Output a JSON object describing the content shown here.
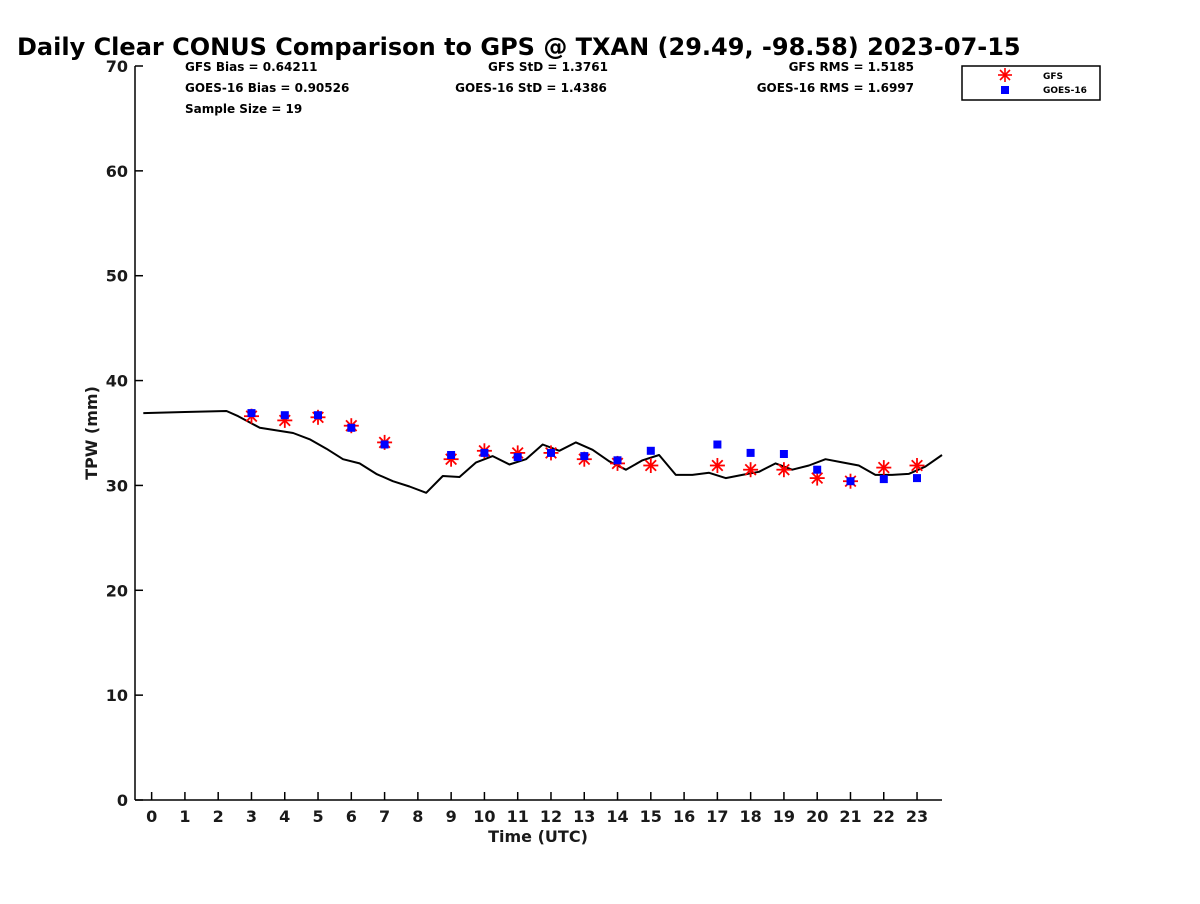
{
  "chart_data": {
    "type": "scatter",
    "title": "Daily Clear CONUS Comparison to GPS @ TXAN (29.49, -98.58) 2023-07-15",
    "xlabel": "Time (UTC)",
    "ylabel": "TPW (mm)",
    "xlim": [
      -0.5,
      23.75
    ],
    "ylim": [
      0,
      70
    ],
    "x_ticks": [
      0,
      1,
      2,
      3,
      4,
      5,
      6,
      7,
      8,
      9,
      10,
      11,
      12,
      13,
      14,
      15,
      16,
      17,
      18,
      19,
      20,
      21,
      22,
      23
    ],
    "y_ticks": [
      0,
      10,
      20,
      30,
      40,
      50,
      60,
      70
    ],
    "grid": false,
    "legend_position": "top-right, outside plot",
    "stats": [
      "GFS Bias = 0.64211",
      "GOES-16 Bias = 0.90526",
      "Sample Size = 19",
      "GFS StD = 1.3761",
      "GOES-16 StD = 1.4386",
      "GFS RMS = 1.5185",
      "GOES-16 RMS = 1.6997"
    ],
    "gps_line": {
      "color": "#000000",
      "points": [
        [
          -0.25,
          36.9
        ],
        [
          1.0,
          37.0
        ],
        [
          2.25,
          37.1
        ],
        [
          2.6,
          36.6
        ],
        [
          3.25,
          35.5
        ],
        [
          4.25,
          35.0
        ],
        [
          4.75,
          34.4
        ],
        [
          5.25,
          33.5
        ],
        [
          5.75,
          32.5
        ],
        [
          6.25,
          32.1
        ],
        [
          6.75,
          31.1
        ],
        [
          7.25,
          30.4
        ],
        [
          7.75,
          29.9
        ],
        [
          8.25,
          29.3
        ],
        [
          8.75,
          30.9
        ],
        [
          9.25,
          30.8
        ],
        [
          9.75,
          32.2
        ],
        [
          10.25,
          32.8
        ],
        [
          10.75,
          32.0
        ],
        [
          11.25,
          32.5
        ],
        [
          11.75,
          33.9
        ],
        [
          12.25,
          33.3
        ],
        [
          12.75,
          34.1
        ],
        [
          13.25,
          33.4
        ],
        [
          13.75,
          32.3
        ],
        [
          14.25,
          31.5
        ],
        [
          14.75,
          32.4
        ],
        [
          15.25,
          32.9
        ],
        [
          15.75,
          31.0
        ],
        [
          16.25,
          31.0
        ],
        [
          16.75,
          31.2
        ],
        [
          17.25,
          30.7
        ],
        [
          17.75,
          31.0
        ],
        [
          18.25,
          31.3
        ],
        [
          18.75,
          32.1
        ],
        [
          19.25,
          31.5
        ],
        [
          19.75,
          31.9
        ],
        [
          20.25,
          32.5
        ],
        [
          20.75,
          32.2
        ],
        [
          21.25,
          31.9
        ],
        [
          21.75,
          31.0
        ],
        [
          22.25,
          31.0
        ],
        [
          22.75,
          31.1
        ],
        [
          23.25,
          31.8
        ],
        [
          23.75,
          32.9
        ]
      ]
    },
    "series": [
      {
        "name": "GFS",
        "marker": "asterisk",
        "color": "#ff0000",
        "points": [
          [
            3,
            36.6
          ],
          [
            4,
            36.2
          ],
          [
            5,
            36.5
          ],
          [
            6,
            35.7
          ],
          [
            7,
            34.1
          ],
          [
            9,
            32.5
          ],
          [
            10,
            33.3
          ],
          [
            11,
            33.1
          ],
          [
            12,
            33.1
          ],
          [
            13,
            32.5
          ],
          [
            14,
            32.1
          ],
          [
            15,
            31.9
          ],
          [
            17,
            31.9
          ],
          [
            18,
            31.5
          ],
          [
            19,
            31.5
          ],
          [
            20,
            30.7
          ],
          [
            21,
            30.4
          ],
          [
            22,
            31.7
          ],
          [
            23,
            31.9
          ]
        ]
      },
      {
        "name": "GOES-16",
        "marker": "square",
        "color": "#0000ff",
        "points": [
          [
            3,
            36.9
          ],
          [
            4,
            36.7
          ],
          [
            5,
            36.7
          ],
          [
            6,
            35.5
          ],
          [
            7,
            33.9
          ],
          [
            9,
            32.9
          ],
          [
            10,
            33.1
          ],
          [
            11,
            32.7
          ],
          [
            12,
            33.1
          ],
          [
            13,
            32.8
          ],
          [
            14,
            32.4
          ],
          [
            15,
            33.3
          ],
          [
            17,
            33.9
          ],
          [
            18,
            33.1
          ],
          [
            19,
            33.0
          ],
          [
            20,
            31.5
          ],
          [
            21,
            30.4
          ],
          [
            22,
            30.6
          ],
          [
            23,
            30.7
          ]
        ]
      }
    ]
  }
}
